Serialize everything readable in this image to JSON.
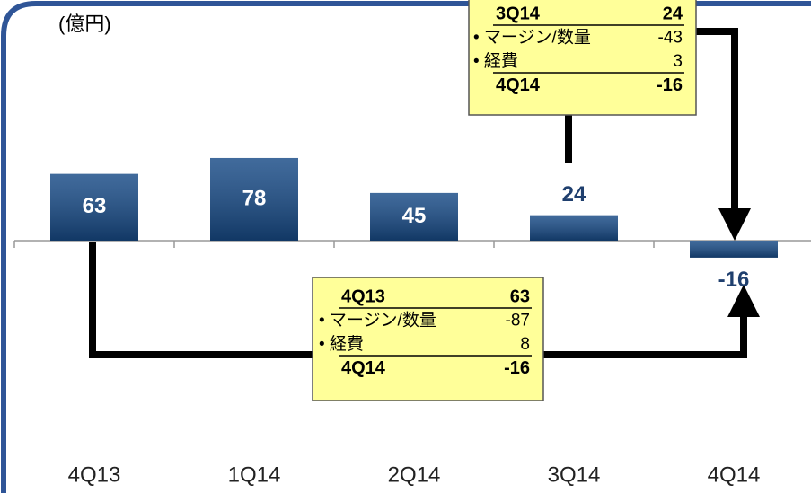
{
  "chart_data": {
    "type": "bar",
    "unit_label": "(億円)",
    "categories": [
      "4Q13",
      "1Q14",
      "2Q14",
      "3Q14",
      "4Q14"
    ],
    "values": [
      63,
      78,
      45,
      24,
      -16
    ],
    "color": "#174a86",
    "ylim": [
      -30,
      100
    ],
    "annotations": [
      {
        "rows": [
          [
            "3Q14",
            24
          ],
          [
            "• マージン/数量",
            -43
          ],
          [
            "• 経費",
            3
          ],
          [
            "4Q14",
            -16
          ]
        ]
      },
      {
        "rows": [
          [
            "4Q13",
            63
          ],
          [
            "• マージン/数量",
            -87
          ],
          [
            "• 経費",
            8
          ],
          [
            "4Q14",
            -16
          ]
        ]
      }
    ]
  }
}
